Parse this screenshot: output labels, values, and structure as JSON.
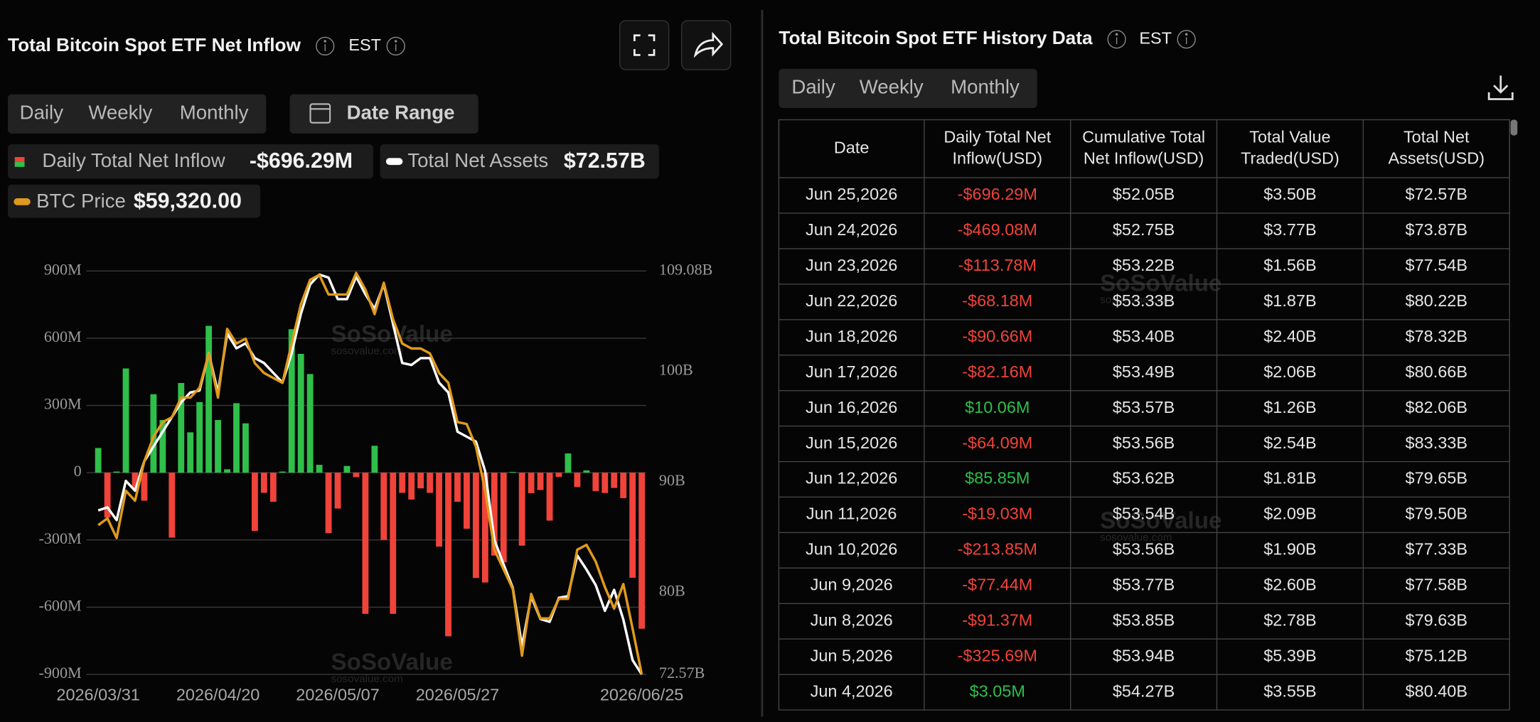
{
  "left_panel": {
    "title": "Total Bitcoin Spot ETF Net Inflow",
    "timezone": "EST",
    "tabs": [
      "Daily",
      "Weekly",
      "Monthly"
    ],
    "active_tab": 0,
    "date_range": "Date Range"
  },
  "chart_data": {
    "type": "combo",
    "categories": [
      "2026/03/31",
      null,
      null,
      null,
      null,
      null,
      null,
      null,
      null,
      null,
      null,
      null,
      null,
      "2026/04/20",
      null,
      null,
      null,
      null,
      null,
      null,
      null,
      null,
      null,
      null,
      null,
      null,
      "2026/05/07",
      null,
      null,
      null,
      null,
      null,
      null,
      null,
      null,
      null,
      null,
      null,
      null,
      "2026/05/27",
      null,
      null,
      null,
      null,
      null,
      null,
      null,
      null,
      null,
      null,
      null,
      null,
      null,
      null,
      null,
      null,
      null,
      null,
      null,
      "2026/06/25"
    ],
    "series": [
      {
        "name": "Daily Total Net Inflow",
        "type": "bar",
        "color": "#2fbf4a",
        "negative_color": "#f0433a",
        "latest_label": "-$696.29M",
        "values": [
          110,
          -200,
          5,
          465,
          -70,
          -125,
          350,
          235,
          -290,
          400,
          180,
          315,
          655,
          235,
          15,
          310,
          220,
          -260,
          -90,
          -130,
          5,
          640,
          530,
          440,
          35,
          -270,
          -160,
          30,
          -20,
          -630,
          120,
          -300,
          -630,
          -90,
          -120,
          -70,
          -90,
          -330,
          -730,
          -130,
          -250,
          -470,
          -490,
          -370,
          -400,
          3.05,
          -325.69,
          -91.37,
          -77.44,
          -213.85,
          -19.03,
          85.85,
          -64.09,
          10.06,
          -82.16,
          -90.66,
          -68.18,
          -113.78,
          -469.08,
          -696.29
        ]
      },
      {
        "name": "Total Net Assets",
        "type": "line",
        "axis": "y2",
        "color": "#ffffff",
        "latest_label": "$72.57B",
        "values": [
          87.41,
          87.68,
          86.53,
          90.08,
          89.19,
          91.86,
          93.19,
          94.53,
          95.86,
          97.19,
          98.08,
          98.26,
          101.64,
          98.08,
          103.41,
          102.08,
          102.53,
          101.19,
          100.75,
          99.86,
          98.97,
          101.64,
          105.19,
          107.86,
          108.75,
          108.48,
          106.53,
          106.53,
          108.57,
          106.97,
          105.64,
          107.86,
          104.3,
          100.75,
          100.57,
          101.19,
          101.19,
          98.97,
          98.08,
          94.53,
          94.08,
          93.64,
          90.97,
          84.75,
          82.53,
          80.4,
          75.12,
          79.63,
          77.58,
          77.33,
          79.5,
          79.65,
          83.33,
          82.06,
          80.66,
          78.32,
          80.22,
          77.54,
          73.87,
          72.57
        ]
      },
      {
        "name": "BTC Price",
        "type": "line",
        "axis": "y3",
        "color": "#e09a1c",
        "latest_label": "$59,320.00",
        "values": [
          70355,
          70865,
          69410,
          72896,
          72170,
          75075,
          76890,
          77980,
          78340,
          79795,
          79795,
          80520,
          83060,
          79795,
          84875,
          83790,
          84150,
          82335,
          81610,
          81245,
          80885,
          83790,
          86690,
          88505,
          88870,
          87415,
          87415,
          87415,
          89015,
          87780,
          85965,
          88285,
          85600,
          83790,
          83425,
          83425,
          83060,
          81610,
          80885,
          77980,
          77835,
          76165,
          72896,
          68540,
          67090,
          65635,
          60700,
          65270,
          63460,
          63460,
          64910,
          64910,
          68540,
          68900,
          67665,
          65780,
          64185,
          66000,
          62730,
          59320
        ]
      }
    ],
    "ylim": [
      -900,
      900
    ],
    "yticks": [
      {
        "value": 900,
        "label": "900M"
      },
      {
        "value": 600,
        "label": "600M"
      },
      {
        "value": 300,
        "label": "300M"
      },
      0,
      {
        "value": -300,
        "label": "-300M"
      },
      {
        "value": -600,
        "label": "-600M"
      },
      {
        "value": -900,
        "label": "-900M"
      }
    ],
    "y2lim": [
      72.57,
      109.08
    ],
    "y2ticks": [
      {
        "value": 109.08,
        "label": "109.08B"
      },
      {
        "value": 100,
        "label": "100B"
      },
      {
        "value": 90,
        "label": "90B"
      },
      {
        "value": 80,
        "label": "80B"
      },
      {
        "value": 72.57,
        "label": "72.57B"
      }
    ],
    "y3lim": [
      59320,
      89160
    ],
    "grid": true
  },
  "watermark": {
    "brand": "SoSoValue",
    "site": "sosovalue.com"
  },
  "right_panel": {
    "title": "Total Bitcoin Spot ETF History Data",
    "timezone": "EST",
    "tabs": [
      "Daily",
      "Weekly",
      "Monthly"
    ],
    "active_tab": 0
  },
  "table": {
    "columns": [
      [
        "Date"
      ],
      [
        "Daily Total Net",
        "Inflow(USD)"
      ],
      [
        "Cumulative Total",
        "Net Inflow(USD)"
      ],
      [
        "Total Value",
        "Traded(USD)"
      ],
      [
        "Total Net",
        "Assets(USD)"
      ]
    ],
    "rows": [
      [
        "Jun 25,2026",
        "-$696.29M",
        "$52.05B",
        "$3.50B",
        "$72.57B"
      ],
      [
        "Jun 24,2026",
        "-$469.08M",
        "$52.75B",
        "$3.77B",
        "$73.87B"
      ],
      [
        "Jun 23,2026",
        "-$113.78M",
        "$53.22B",
        "$1.56B",
        "$77.54B"
      ],
      [
        "Jun 22,2026",
        "-$68.18M",
        "$53.33B",
        "$1.87B",
        "$80.22B"
      ],
      [
        "Jun 18,2026",
        "-$90.66M",
        "$53.40B",
        "$2.40B",
        "$78.32B"
      ],
      [
        "Jun 17,2026",
        "-$82.16M",
        "$53.49B",
        "$2.06B",
        "$80.66B"
      ],
      [
        "Jun 16,2026",
        "$10.06M",
        "$53.57B",
        "$1.26B",
        "$82.06B"
      ],
      [
        "Jun 15,2026",
        "-$64.09M",
        "$53.56B",
        "$2.54B",
        "$83.33B"
      ],
      [
        "Jun 12,2026",
        "$85.85M",
        "$53.62B",
        "$1.81B",
        "$79.65B"
      ],
      [
        "Jun 11,2026",
        "-$19.03M",
        "$53.54B",
        "$2.09B",
        "$79.50B"
      ],
      [
        "Jun 10,2026",
        "-$213.85M",
        "$53.56B",
        "$1.90B",
        "$77.33B"
      ],
      [
        "Jun 9,2026",
        "-$77.44M",
        "$53.77B",
        "$2.60B",
        "$77.58B"
      ],
      [
        "Jun 8,2026",
        "-$91.37M",
        "$53.85B",
        "$2.78B",
        "$79.63B"
      ],
      [
        "Jun 5,2026",
        "-$325.69M",
        "$53.94B",
        "$5.39B",
        "$75.12B"
      ],
      [
        "Jun 4,2026",
        "$3.05M",
        "$54.27B",
        "$3.55B",
        "$80.40B"
      ]
    ]
  }
}
